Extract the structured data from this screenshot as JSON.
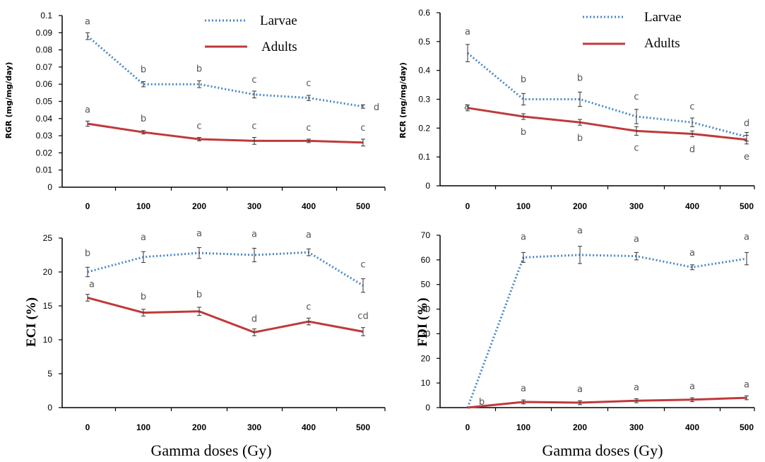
{
  "chart_data": [
    {
      "type": "line",
      "ylabel": "RGR (mg/mg/day)",
      "xlabel": "",
      "categories": [
        "0",
        "100",
        "200",
        "300",
        "400",
        "500"
      ],
      "ylim": [
        0,
        0.1
      ],
      "yticks": [
        "0",
        "0.01",
        "0.02",
        "0.03",
        "0.04",
        "0.05",
        "0.06",
        "0.07",
        "0.08",
        "0.09",
        "0.1"
      ],
      "series": [
        {
          "name": "Larvae",
          "color": "#4a86c8",
          "style": "dotted",
          "values": [
            0.088,
            0.06,
            0.06,
            0.054,
            0.052,
            0.047
          ],
          "errors": [
            0.002,
            0.0015,
            0.002,
            0.002,
            0.0015,
            0.001
          ],
          "letters": [
            "a",
            "b",
            "b",
            "c",
            "c",
            "d"
          ]
        },
        {
          "name": "Adults",
          "color": "#c0393b",
          "style": "solid",
          "values": [
            0.037,
            0.032,
            0.028,
            0.027,
            0.027,
            0.026
          ],
          "errors": [
            0.0015,
            0.001,
            0.001,
            0.002,
            0.001,
            0.002
          ],
          "letters": [
            "a",
            "b",
            "c",
            "c",
            "c",
            "c"
          ]
        }
      ],
      "legend": [
        "Larvae",
        "Adults"
      ]
    },
    {
      "type": "line",
      "ylabel": "RCR (mg/mg/day)",
      "xlabel": "",
      "categories": [
        "0",
        "100",
        "200",
        "300",
        "400",
        "500"
      ],
      "ylim": [
        0,
        0.6
      ],
      "yticks": [
        "0",
        "0.1",
        "0.2",
        "0.3",
        "0.4",
        "0.5",
        "0.6"
      ],
      "series": [
        {
          "name": "Larvae",
          "color": "#4a86c8",
          "style": "dotted",
          "values": [
            0.46,
            0.3,
            0.3,
            0.24,
            0.22,
            0.17
          ],
          "errors": [
            0.03,
            0.02,
            0.025,
            0.025,
            0.015,
            0.015
          ],
          "letters": [
            "a",
            "b",
            "b",
            "c",
            "c",
            "d"
          ]
        },
        {
          "name": "Adults",
          "color": "#c0393b",
          "style": "solid",
          "values": [
            0.27,
            0.24,
            0.22,
            0.19,
            0.18,
            0.16
          ],
          "errors": [
            0.01,
            0.01,
            0.01,
            0.015,
            0.01,
            0.015
          ],
          "letters": [
            "a",
            "b",
            "b",
            "c",
            "d",
            "e"
          ]
        }
      ],
      "legend": [
        "Larvae",
        "Adults"
      ]
    },
    {
      "type": "line",
      "ylabel": "ECI (%)",
      "xlabel": "Gamma doses (Gy)",
      "categories": [
        "0",
        "100",
        "200",
        "300",
        "400",
        "500"
      ],
      "ylim": [
        0,
        25
      ],
      "yticks": [
        "0",
        "5",
        "10",
        "15",
        "20",
        "25"
      ],
      "series": [
        {
          "name": "Larvae",
          "color": "#4a86c8",
          "style": "dotted",
          "values": [
            20.0,
            22.2,
            22.8,
            22.5,
            22.9,
            18.0
          ],
          "errors": [
            0.7,
            0.8,
            0.8,
            1.0,
            0.5,
            1.0
          ],
          "letters": [
            "b",
            "a",
            "a",
            "a",
            "a",
            "c"
          ]
        },
        {
          "name": "Adults",
          "color": "#c0393b",
          "style": "solid",
          "values": [
            16.2,
            14.0,
            14.2,
            11.1,
            12.7,
            11.2
          ],
          "errors": [
            0.5,
            0.5,
            0.6,
            0.5,
            0.5,
            0.6
          ],
          "letters": [
            "a",
            "b",
            "b",
            "d",
            "c",
            "cd"
          ]
        }
      ]
    },
    {
      "type": "line",
      "ylabel": "FDI (%)",
      "xlabel": "Gamma doses (Gy)",
      "categories": [
        "0",
        "100",
        "200",
        "300",
        "400",
        "500"
      ],
      "ylim": [
        0,
        70
      ],
      "yticks": [
        "0",
        "10",
        "20",
        "30",
        "40",
        "50",
        "60",
        "70"
      ],
      "series": [
        {
          "name": "Larvae",
          "color": "#4a86c8",
          "style": "dotted",
          "values": [
            0,
            61.0,
            62.0,
            61.5,
            57.0,
            60.5
          ],
          "errors": [
            0,
            2.0,
            3.5,
            1.5,
            1.0,
            2.5
          ],
          "letters": [
            "",
            "a",
            "a",
            "a",
            "a",
            "a"
          ]
        },
        {
          "name": "Adults",
          "color": "#c0393b",
          "style": "solid",
          "values": [
            0,
            2.3,
            2.0,
            2.8,
            3.2,
            4.0
          ],
          "errors": [
            0,
            0.8,
            0.8,
            0.8,
            0.8,
            0.8
          ],
          "letters": [
            "b",
            "a",
            "a",
            "a",
            "a",
            "a"
          ]
        }
      ]
    }
  ]
}
